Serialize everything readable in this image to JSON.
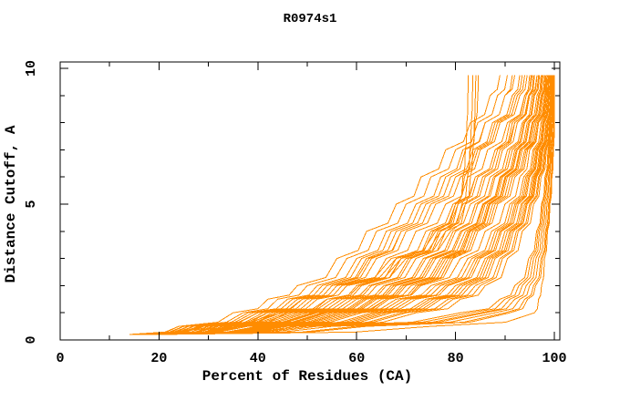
{
  "title": "R0974s1",
  "colors": {
    "curve": "#ff8c00",
    "axis": "#000000",
    "background": "#ffffff"
  },
  "chart_data": {
    "type": "line",
    "title": "R0974s1",
    "xlabel": "Percent of Residues (CA)",
    "ylabel": "Distance Cutoff, A",
    "xlim": [
      0,
      100
    ],
    "ylim": [
      0,
      10
    ],
    "x_major_ticks": [
      0,
      20,
      40,
      60,
      80,
      100
    ],
    "x_minor_ticks": [
      10,
      30,
      50,
      70,
      90
    ],
    "y_major_ticks": [
      0,
      5,
      10
    ],
    "y_minor_ticks": [
      1,
      2,
      3,
      4,
      6,
      7,
      8,
      9
    ],
    "grid": false,
    "legend": "none",
    "series_color": "#ff8c00",
    "y_levels": [
      0.2,
      0.5,
      1,
      1.5,
      2,
      3,
      4,
      5,
      6,
      7,
      8,
      9,
      9.75
    ],
    "series": [
      {
        "x": [
          17,
          27,
          42,
          50,
          56,
          68,
          77,
          80.5,
          81.5,
          82,
          82.3,
          82.5,
          82.6
        ]
      },
      {
        "x": [
          18,
          28,
          44,
          52,
          58,
          70,
          79,
          82,
          83,
          83.5,
          83.8,
          84,
          84.1
        ]
      },
      {
        "x": [
          16,
          26,
          40,
          49,
          55,
          67,
          76,
          80,
          81.8,
          83,
          84,
          84.5,
          84.6
        ]
      },
      {
        "x": [
          17.5,
          28.5,
          43,
          51,
          57,
          69,
          78,
          81.3,
          82.4,
          82.9,
          83.2,
          83.4,
          83.5
        ]
      },
      {
        "x": [
          15,
          24,
          35,
          42,
          48,
          56,
          62,
          68,
          73,
          78,
          83,
          87,
          89
        ]
      },
      {
        "x": [
          16,
          25,
          37,
          44,
          50,
          58,
          64,
          70,
          75,
          80,
          84.5,
          88.5,
          90.5
        ]
      },
      {
        "x": [
          17,
          26,
          38,
          46,
          52,
          60,
          66,
          72,
          77,
          81.5,
          86,
          90,
          92
        ]
      },
      {
        "x": [
          18,
          27,
          40,
          48,
          54,
          62,
          68,
          74,
          79,
          83.5,
          87.5,
          91.5,
          93
        ]
      },
      {
        "x": [
          20,
          29,
          42,
          50,
          56,
          64,
          70,
          76,
          81,
          85,
          89,
          93,
          94.5
        ]
      },
      {
        "x": [
          21,
          30,
          44,
          52,
          58,
          66,
          72,
          78,
          82.5,
          86.5,
          90.5,
          94,
          95.5
        ]
      },
      {
        "x": [
          22,
          32,
          46,
          54,
          60,
          68,
          74,
          79.5,
          84,
          88,
          92,
          95,
          96.5
        ]
      },
      {
        "x": [
          19,
          28,
          41,
          49,
          55,
          63,
          69,
          75,
          80,
          84,
          88,
          92,
          93.5
        ]
      },
      {
        "x": [
          16,
          26,
          39,
          47,
          53,
          61,
          67,
          73,
          78,
          82,
          86,
          90,
          91.5
        ]
      },
      {
        "x": [
          17,
          27,
          40,
          48,
          54,
          62.5,
          69,
          75,
          80,
          84.5,
          88.5,
          92.5,
          94
        ]
      },
      {
        "x": [
          14.5,
          25,
          45,
          55,
          61,
          69,
          75,
          80,
          84,
          88,
          91,
          94,
          95
        ]
      },
      {
        "x": [
          15,
          26,
          47,
          57,
          63,
          71,
          77,
          82,
          86,
          89.5,
          92.5,
          95,
          96
        ]
      },
      {
        "x": [
          15.5,
          27,
          48,
          58,
          64,
          72,
          78,
          83,
          87,
          90.5,
          93.5,
          95.5,
          96.5
        ]
      },
      {
        "x": [
          16,
          28,
          50,
          60,
          66,
          74,
          80,
          84.5,
          88,
          91.5,
          94,
          96,
          97
        ]
      },
      {
        "x": [
          16.5,
          29,
          51,
          61,
          67,
          75,
          81,
          85.5,
          89,
          92,
          94.5,
          96.5,
          97.3
        ]
      },
      {
        "x": [
          17,
          30,
          52,
          62,
          68,
          76,
          82,
          86,
          89.5,
          92.5,
          95,
          97,
          97.7
        ]
      },
      {
        "x": [
          17.5,
          31,
          53,
          63,
          69,
          77,
          82.5,
          86.5,
          90,
          93,
          95.5,
          97.3,
          98
        ]
      },
      {
        "x": [
          18,
          32,
          54,
          64,
          70,
          78,
          83,
          87,
          90.5,
          93.5,
          96,
          97.7,
          98.3
        ]
      },
      {
        "x": [
          18.5,
          33,
          55,
          65,
          71,
          78.5,
          83.5,
          87.5,
          91,
          94,
          96.3,
          98,
          98.6
        ]
      },
      {
        "x": [
          19,
          34,
          56,
          66,
          72,
          79,
          84,
          88,
          91.5,
          94.3,
          96.6,
          98.2,
          98.8
        ]
      },
      {
        "x": [
          20,
          35,
          57,
          66.5,
          72.5,
          79.5,
          84.5,
          88.5,
          92,
          94.6,
          96.8,
          98.4,
          99
        ]
      },
      {
        "x": [
          14,
          24,
          44,
          54,
          60.5,
          69,
          75.5,
          80.5,
          84.5,
          88.5,
          91.5,
          94.3,
          95.3
        ]
      },
      {
        "x": [
          15,
          26,
          46,
          56,
          62.5,
          70.5,
          76.5,
          81.5,
          85.5,
          89,
          92,
          94.8,
          95.8
        ]
      },
      {
        "x": [
          16,
          28,
          49,
          59,
          65.5,
          73.5,
          79.5,
          84,
          87.7,
          91,
          93.8,
          95.8,
          96.8
        ]
      },
      {
        "x": [
          17,
          30,
          51.5,
          61.5,
          67.5,
          75.5,
          81.3,
          85.7,
          89.2,
          92.3,
          94.8,
          96.8,
          97.5
        ]
      },
      {
        "x": [
          18,
          31,
          53.5,
          63.5,
          69.5,
          77.5,
          82.8,
          86.8,
          90.2,
          93.2,
          95.7,
          97.5,
          98.1
        ]
      },
      {
        "x": [
          15,
          32,
          55,
          66,
          73,
          81,
          86,
          90,
          93,
          95,
          96.8,
          98,
          98.4
        ]
      },
      {
        "x": [
          15.5,
          34,
          57,
          68,
          75,
          82.5,
          87.3,
          91,
          93.8,
          95.7,
          97.3,
          98.4,
          98.8
        ]
      },
      {
        "x": [
          16,
          36,
          59,
          70,
          77,
          84,
          88.5,
          92,
          94.5,
          96.3,
          97.8,
          98.8,
          99.2
        ]
      },
      {
        "x": [
          16.5,
          38,
          61,
          72,
          78.5,
          85,
          89.3,
          92.7,
          95,
          96.7,
          98,
          99,
          99.4
        ]
      },
      {
        "x": [
          17,
          40,
          63,
          74,
          80,
          86,
          90,
          93.3,
          95.5,
          97,
          98.3,
          99.2,
          99.5
        ]
      },
      {
        "x": [
          17.5,
          42,
          65,
          75.5,
          81.5,
          87,
          91,
          94,
          96,
          97.4,
          98.6,
          99.4,
          99.7
        ]
      },
      {
        "x": [
          18,
          44,
          67,
          77,
          83,
          88,
          91.7,
          94.5,
          96.4,
          97.7,
          98.8,
          99.5,
          99.8
        ]
      },
      {
        "x": [
          18.5,
          45,
          69,
          78.5,
          84,
          89,
          92.3,
          95,
          96.8,
          98,
          99,
          99.7,
          100
        ]
      },
      {
        "x": [
          16,
          37,
          60,
          71,
          78,
          84.5,
          89,
          92.3,
          94.8,
          96.5,
          97.9,
          98.9,
          99.3
        ]
      },
      {
        "x": [
          17,
          41,
          64,
          74.8,
          80.8,
          86.5,
          90.5,
          93.6,
          95.8,
          97.2,
          98.4,
          99.3,
          99.6
        ]
      },
      {
        "x": [
          15.5,
          35,
          58,
          69,
          76,
          83.3,
          88,
          91.5,
          94.2,
          96,
          97.6,
          98.6,
          99
        ]
      },
      {
        "x": [
          18,
          43,
          66,
          76.3,
          82.3,
          87.5,
          91.3,
          94.3,
          96.2,
          97.5,
          98.7,
          99.4,
          99.7
        ]
      },
      {
        "x": [
          19,
          46,
          70,
          79.5,
          85,
          89.5,
          92.7,
          95.3,
          97,
          98.2,
          99.1,
          99.8,
          100
        ]
      },
      {
        "x": [
          20,
          48,
          72,
          81,
          86,
          90.5,
          93.5,
          95.8,
          97.3,
          98.4,
          99.2,
          99.8,
          100
        ]
      },
      {
        "x": [
          18,
          50,
          85,
          91,
          93.5,
          95.8,
          97,
          97.9,
          98.5,
          99,
          99.4,
          99.8,
          100
        ]
      },
      {
        "x": [
          19,
          55,
          88,
          93,
          95,
          96.8,
          97.8,
          98.5,
          99,
          99.4,
          99.7,
          100,
          100
        ]
      },
      {
        "x": [
          20,
          60,
          90,
          94,
          95.8,
          97.3,
          98.2,
          98.8,
          99.3,
          99.6,
          99.9,
          100,
          100
        ]
      },
      {
        "x": [
          17,
          48,
          83,
          90,
          92.8,
          95.3,
          96.7,
          97.6,
          98.3,
          98.9,
          99.3,
          99.7,
          99.9
        ]
      },
      {
        "x": [
          21,
          62,
          91,
          94.6,
          96.2,
          97.6,
          98.4,
          99,
          99.4,
          99.7,
          100,
          100,
          100
        ]
      },
      {
        "x": [
          16,
          46,
          81,
          89,
          92,
          94.8,
          96.4,
          97.4,
          98.1,
          98.7,
          99.2,
          99.6,
          99.8
        ]
      },
      {
        "x": [
          20,
          75,
          96,
          96.8,
          97.4,
          98,
          98.6,
          99.1,
          99.5,
          99.8,
          100,
          100,
          100
        ]
      },
      {
        "x": [
          18.5,
          52,
          86,
          92,
          94.3,
          96.3,
          97.4,
          98.2,
          98.8,
          99.2,
          99.6,
          99.9,
          100
        ]
      }
    ]
  }
}
